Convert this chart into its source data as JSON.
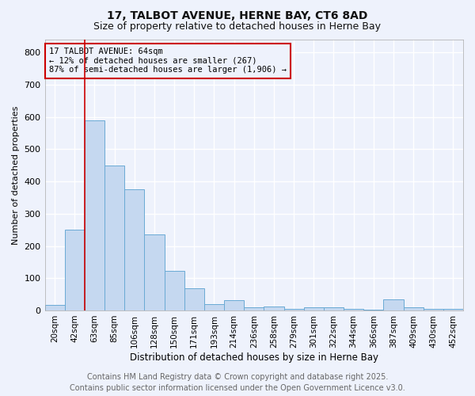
{
  "title_line1": "17, TALBOT AVENUE, HERNE BAY, CT6 8AD",
  "title_line2": "Size of property relative to detached houses in Herne Bay",
  "xlabel": "Distribution of detached houses by size in Herne Bay",
  "ylabel": "Number of detached properties",
  "categories": [
    "20sqm",
    "42sqm",
    "63sqm",
    "85sqm",
    "106sqm",
    "128sqm",
    "150sqm",
    "171sqm",
    "193sqm",
    "214sqm",
    "236sqm",
    "258sqm",
    "279sqm",
    "301sqm",
    "322sqm",
    "344sqm",
    "366sqm",
    "387sqm",
    "409sqm",
    "430sqm",
    "452sqm"
  ],
  "values": [
    17,
    250,
    590,
    450,
    375,
    235,
    122,
    68,
    20,
    32,
    10,
    12,
    5,
    10,
    10,
    5,
    3,
    35,
    10,
    5,
    5
  ],
  "bar_color": "#c5d8f0",
  "bar_edge_color": "#6aaad4",
  "vline_x_index": 2,
  "vline_color": "#cc0000",
  "annotation_box_text": "17 TALBOT AVENUE: 64sqm\n← 12% of detached houses are smaller (267)\n87% of semi-detached houses are larger (1,906) →",
  "annotation_box_color": "#cc0000",
  "background_color": "#eef2fc",
  "grid_color": "#ffffff",
  "ylim": [
    0,
    840
  ],
  "yticks": [
    0,
    100,
    200,
    300,
    400,
    500,
    600,
    700,
    800
  ],
  "footer_line1": "Contains HM Land Registry data © Crown copyright and database right 2025.",
  "footer_line2": "Contains public sector information licensed under the Open Government Licence v3.0.",
  "footer_fontsize": 7.0,
  "title1_fontsize": 10,
  "title2_fontsize": 9
}
